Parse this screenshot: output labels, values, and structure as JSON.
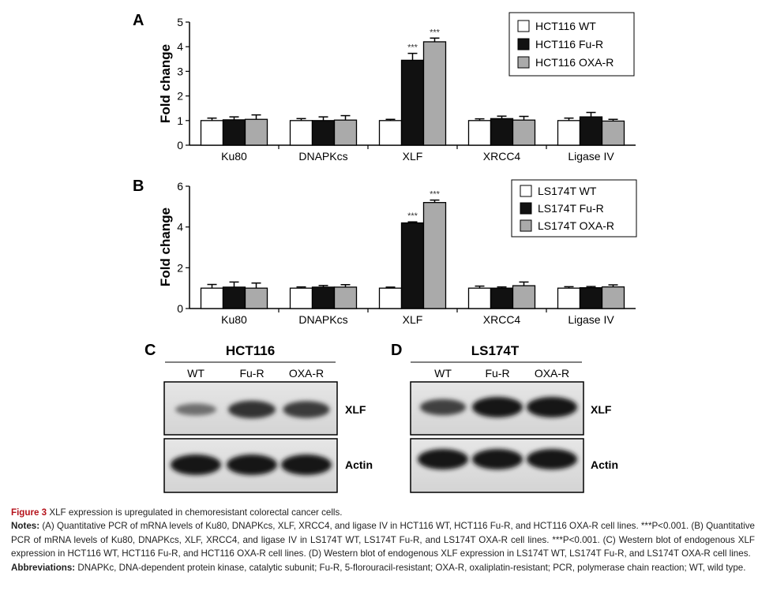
{
  "panels": {
    "a": {
      "letter": "A",
      "ylabel": "Fold change",
      "legend": [
        "HCT116 WT",
        "HCT116 Fu-R",
        "HCT116 OXA-R"
      ]
    },
    "b": {
      "letter": "B",
      "ylabel": "Fold change",
      "legend": [
        "LS174T WT",
        "LS174T Fu-R",
        "LS174T OXA-R"
      ]
    },
    "c": {
      "letter": "C",
      "title": "HCT116",
      "lanes": [
        "WT",
        "Fu-R",
        "OXA-R"
      ],
      "blot_labels": [
        "XLF",
        "Actin"
      ]
    },
    "d": {
      "letter": "D",
      "title": "LS174T",
      "lanes": [
        "WT",
        "Fu-R",
        "OXA-R"
      ],
      "blot_labels": [
        "XLF",
        "Actin"
      ]
    }
  },
  "chart_data": [
    {
      "type": "bar",
      "panel": "A",
      "categories": [
        "Ku80",
        "DNAPKcs",
        "XLF",
        "XRCC4",
        "Ligase IV"
      ],
      "ylabel": "Fold change",
      "ylim": [
        0,
        5
      ],
      "yticks": [
        0,
        1,
        2,
        3,
        4,
        5
      ],
      "legend_position": "top-right",
      "series": [
        {
          "name": "HCT116 WT",
          "color": "#ffffff",
          "values": [
            1.0,
            1.0,
            1.0,
            1.0,
            1.0
          ],
          "errors": [
            0.1,
            0.08,
            0.05,
            0.07,
            0.1
          ]
        },
        {
          "name": "HCT116 Fu-R",
          "color": "#111111",
          "values": [
            1.03,
            1.0,
            3.45,
            1.08,
            1.15
          ],
          "errors": [
            0.12,
            0.15,
            0.28,
            0.1,
            0.18
          ]
        },
        {
          "name": "HCT116 OXA-R",
          "color": "#aaaaaa",
          "values": [
            1.05,
            1.02,
            4.2,
            1.02,
            0.98
          ],
          "errors": [
            0.18,
            0.18,
            0.15,
            0.15,
            0.07
          ]
        }
      ],
      "annotations": [
        {
          "category": "XLF",
          "series": "HCT116 Fu-R",
          "text": "***"
        },
        {
          "category": "XLF",
          "series": "HCT116 OXA-R",
          "text": "***"
        }
      ]
    },
    {
      "type": "bar",
      "panel": "B",
      "categories": [
        "Ku80",
        "DNAPKcs",
        "XLF",
        "XRCC4",
        "Ligase IV"
      ],
      "ylabel": "Fold change",
      "ylim": [
        0,
        6
      ],
      "yticks": [
        0,
        2,
        4,
        6
      ],
      "legend_position": "top-right",
      "series": [
        {
          "name": "LS174T WT",
          "color": "#ffffff",
          "values": [
            1.0,
            1.0,
            1.0,
            1.0,
            1.0
          ],
          "errors": [
            0.18,
            0.06,
            0.05,
            0.1,
            0.07
          ]
        },
        {
          "name": "LS174T Fu-R",
          "color": "#111111",
          "values": [
            1.05,
            1.05,
            4.2,
            1.0,
            1.02
          ],
          "errors": [
            0.25,
            0.08,
            0.05,
            0.06,
            0.06
          ]
        },
        {
          "name": "LS174T OXA-R",
          "color": "#aaaaaa",
          "values": [
            1.0,
            1.05,
            5.2,
            1.12,
            1.06
          ],
          "errors": [
            0.25,
            0.12,
            0.12,
            0.18,
            0.1
          ]
        }
      ],
      "annotations": [
        {
          "category": "XLF",
          "series": "LS174T Fu-R",
          "text": "***"
        },
        {
          "category": "XLF",
          "series": "LS174T OXA-R",
          "text": "***"
        }
      ]
    }
  ],
  "blot_data": [
    {
      "panel": "C",
      "protein": "XLF",
      "intensity": [
        0.4,
        0.8,
        0.75
      ]
    },
    {
      "panel": "C",
      "protein": "Actin",
      "intensity": [
        1.0,
        1.0,
        1.0
      ]
    },
    {
      "panel": "D",
      "protein": "XLF",
      "intensity": [
        0.7,
        1.0,
        1.0
      ]
    },
    {
      "panel": "D",
      "protein": "Actin",
      "intensity": [
        1.0,
        1.0,
        1.0
      ]
    }
  ],
  "caption": {
    "figure_label": "Figure 3",
    "figure_title": "XLF expression is upregulated in chemoresistant colorectal cancer cells.",
    "notes_label": "Notes:",
    "notes_text": "(A) Quantitative PCR of mRNA levels of Ku80, DNAPKcs, XLF, XRCC4, and ligase IV in HCT116 WT, HCT116 Fu-R, and HCT116 OXA-R cell lines. ***P<0.001. (B) Quantitative PCR of mRNA levels of Ku80, DNAPKcs, XLF, XRCC4, and ligase IV in LS174T WT, LS174T Fu-R, and LS174T OXA-R cell lines. ***P<0.001. (C) Western blot of endogenous XLF expression in HCT116 WT, HCT116 Fu-R, and HCT116 OXA-R cell lines. (D) Western blot of endogenous XLF expression in LS174T WT, LS174T Fu-R, and LS174T OXA-R cell lines.",
    "abbrev_label": "Abbreviations:",
    "abbrev_text": "DNAPKc, DNA-dependent protein kinase, catalytic subunit; Fu-R, 5-florouracil-resistant; OXA-R, oxaliplatin-resistant; PCR, polymerase chain reaction; WT, wild type."
  }
}
